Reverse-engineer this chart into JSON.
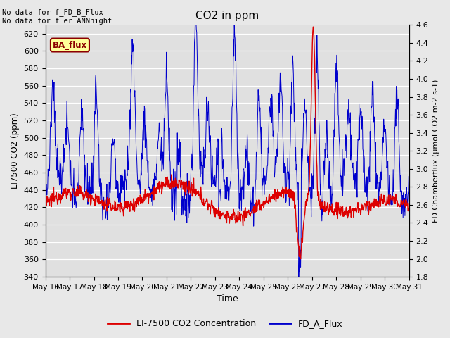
{
  "title": "CO2 in ppm",
  "xlabel": "Time",
  "ylabel_left": "LI7500 CO2 (ppm)",
  "ylabel_right": "FD Chamberflux (μmol CO2 m-2 s-1)",
  "ylim_left": [
    340,
    630
  ],
  "ylim_right": [
    1.8,
    4.6
  ],
  "yticks_left": [
    340,
    360,
    380,
    400,
    420,
    440,
    460,
    480,
    500,
    520,
    540,
    560,
    580,
    600,
    620
  ],
  "yticks_right": [
    1.8,
    2.0,
    2.2,
    2.4,
    2.6,
    2.8,
    3.0,
    3.2,
    3.4,
    3.6,
    3.8,
    4.0,
    4.2,
    4.4,
    4.6
  ],
  "xtick_labels": [
    "May 16",
    "May 17",
    "May 18",
    "May 19",
    "May 20",
    "May 21",
    "May 22",
    "May 23",
    "May 24",
    "May 25",
    "May 26",
    "May 27",
    "May 28",
    "May 29",
    "May 30",
    "May 31"
  ],
  "color_red": "#dd0000",
  "color_blue": "#0000cc",
  "annotation_text1": "No data for f_FD_B_Flux",
  "annotation_text2": "No data for f_er_ANNnight",
  "legend_label_red": "LI-7500 CO2 Concentration",
  "legend_label_blue": "FD_A_Flux",
  "ba_flux_label": "BA_flux",
  "bg_color": "#e8e8e8",
  "plot_bg_color": "#e0e0e0",
  "grid_color": "#ffffff",
  "n_points": 960,
  "seed": 12345
}
